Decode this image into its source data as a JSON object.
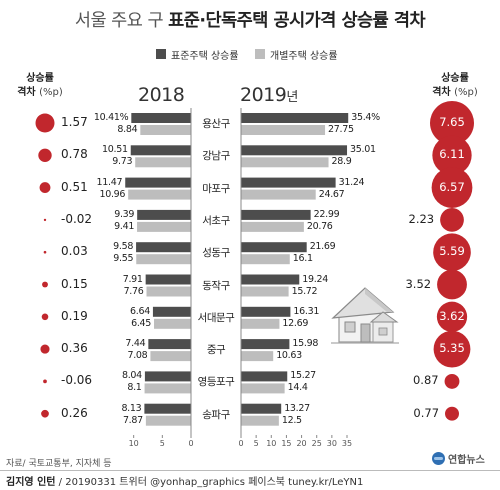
{
  "title_light": "서울 주요 구 ",
  "title_bold": "표준·단독주택 공시가격 상승률 격차",
  "legend": [
    {
      "label": "표준주택 상승률",
      "color": "#4d4d4d"
    },
    {
      "label": "개별주택 상승률",
      "color": "#bdbdbd"
    }
  ],
  "left_header": {
    "line1": "상승률",
    "line2": "격차",
    "unit": "(%p)"
  },
  "right_header": {
    "line1": "상승률",
    "line2": "격차",
    "unit": "(%p)"
  },
  "year_left": "2018",
  "year_right_num": "2019",
  "year_right_suffix": "년",
  "colors": {
    "standard": "#4d4d4d",
    "individual": "#bdbdbd",
    "circle": "#c1272d",
    "axis": "#888888"
  },
  "chart_data": {
    "type": "bar",
    "unit": "%",
    "categories": [
      "용산구",
      "강남구",
      "마포구",
      "서초구",
      "성동구",
      "동작구",
      "서대문구",
      "중구",
      "영등포구",
      "송파구"
    ],
    "series_names": [
      "표준주택 상승률",
      "개별주택 상승률"
    ],
    "y2018": {
      "standard": [
        10.41,
        10.51,
        11.47,
        9.39,
        9.58,
        7.91,
        6.64,
        7.44,
        8.04,
        8.13
      ],
      "individual": [
        8.84,
        9.73,
        10.96,
        9.41,
        9.55,
        7.76,
        6.45,
        7.08,
        8.1,
        7.87
      ],
      "standard_labels": [
        "10.41%",
        "10.51",
        "11.47",
        "9.39",
        "9.58",
        "7.91",
        "6.64",
        "7.44",
        "8.04",
        "8.13"
      ],
      "individual_labels": [
        "8.84",
        "9.73",
        "10.96",
        "9.41",
        "9.55",
        "7.76",
        "6.45",
        "7.08",
        "8.1",
        "7.87"
      ],
      "xlim": [
        0,
        15
      ],
      "ticks": [
        "10",
        "5",
        "0"
      ]
    },
    "y2019": {
      "standard": [
        35.4,
        35.01,
        31.24,
        22.99,
        21.69,
        19.24,
        16.31,
        15.98,
        15.27,
        13.27
      ],
      "individual": [
        27.75,
        28.9,
        24.67,
        20.76,
        16.1,
        15.72,
        12.69,
        10.63,
        14.4,
        12.5
      ],
      "standard_labels": [
        "35.4%",
        "35.01",
        "31.24",
        "22.99",
        "21.69",
        "19.24",
        "16.31",
        "15.98",
        "15.27",
        "13.27"
      ],
      "individual_labels": [
        "27.75",
        "28.9",
        "24.67",
        "20.76",
        "16.1",
        "15.72",
        "12.69",
        "10.63",
        "14.4",
        "12.5"
      ],
      "xlim": [
        0,
        35
      ],
      "ticks": [
        "0",
        "5",
        "10",
        "15",
        "20",
        "25",
        "30",
        "35"
      ]
    },
    "gap2018": [
      1.57,
      0.78,
      0.51,
      -0.02,
      0.03,
      0.15,
      0.19,
      0.36,
      -0.06,
      0.26
    ],
    "gap2018_labels": [
      "1.57",
      "0.78",
      "0.51",
      "-0.02",
      "0.03",
      "0.15",
      "0.19",
      "0.36",
      "-0.06",
      "0.26"
    ],
    "gap2019": [
      7.65,
      6.11,
      6.57,
      2.23,
      5.59,
      3.52,
      3.62,
      5.35,
      0.87,
      0.77
    ],
    "gap2019_labels": [
      "7.65",
      "6.11",
      "6.57",
      "2.23",
      "5.59",
      "3.52",
      "3.62",
      "5.35",
      "0.87",
      "0.77"
    ]
  },
  "source": "자료/ 국토교통부, 지자체 등",
  "credit_name": "김지영 인턴",
  "credit_rest": " / 20190331 트위터 @yonhap_graphics 페이스북 tuney.kr/LeYN1",
  "logo_text": "연합뉴스",
  "house_icon": "house-illustration"
}
